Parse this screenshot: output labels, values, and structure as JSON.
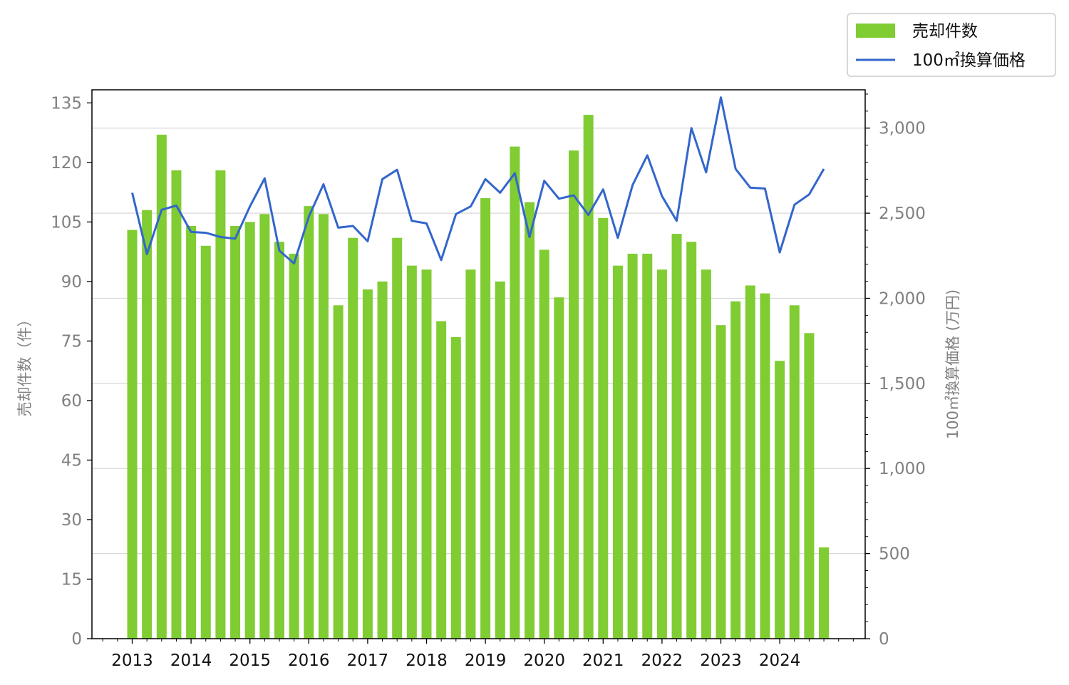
{
  "chart_data": {
    "type": "bar+line",
    "x_tick_labels": [
      "2013",
      "2014",
      "2015",
      "2016",
      "2017",
      "2018",
      "2019",
      "2020",
      "2021",
      "2022",
      "2023",
      "2024"
    ],
    "x_start_year": 2013,
    "periods_per_year": 4,
    "series": [
      {
        "name": "売却件数",
        "type": "bar",
        "axis": "left",
        "color": "#80cc33",
        "values": [
          103,
          108,
          127,
          118,
          104,
          99,
          118,
          104,
          105,
          107,
          100,
          97,
          109,
          107,
          84,
          101,
          88,
          90,
          101,
          94,
          93,
          80,
          76,
          93,
          111,
          90,
          124,
          110,
          98,
          86,
          123,
          132,
          106,
          94,
          97,
          97,
          93,
          102,
          100,
          93,
          79,
          85,
          89,
          87,
          70,
          84,
          77,
          23
        ]
      },
      {
        "name": "100㎡換算価格",
        "type": "line",
        "axis": "right",
        "color": "#3366cc",
        "values": [
          2620,
          2260,
          2520,
          2545,
          2390,
          2385,
          2360,
          2350,
          2540,
          2705,
          2280,
          2205,
          2480,
          2670,
          2415,
          2425,
          2335,
          2700,
          2755,
          2455,
          2440,
          2225,
          2495,
          2540,
          2700,
          2620,
          2735,
          2360,
          2690,
          2585,
          2605,
          2490,
          2640,
          2355,
          2665,
          2840,
          2600,
          2455,
          3000,
          2740,
          3180,
          2760,
          2650,
          2645,
          2270,
          2550,
          2610,
          2760
        ]
      }
    ],
    "left_axis": {
      "label": "売却件数（件）",
      "ticks": [
        "0",
        "15",
        "30",
        "45",
        "60",
        "75",
        "90",
        "105",
        "120",
        "135"
      ],
      "range": [
        0,
        138.3
      ]
    },
    "right_axis": {
      "label": "100㎡換算価格 (万円)",
      "ticks": [
        "0",
        "500",
        "1,000",
        "1,500",
        "2,000",
        "2,500",
        "3,000"
      ],
      "range": [
        0,
        3225
      ]
    },
    "grid": "horizontal at right-axis major ticks",
    "legend_position": "top-right (outside plot)"
  }
}
